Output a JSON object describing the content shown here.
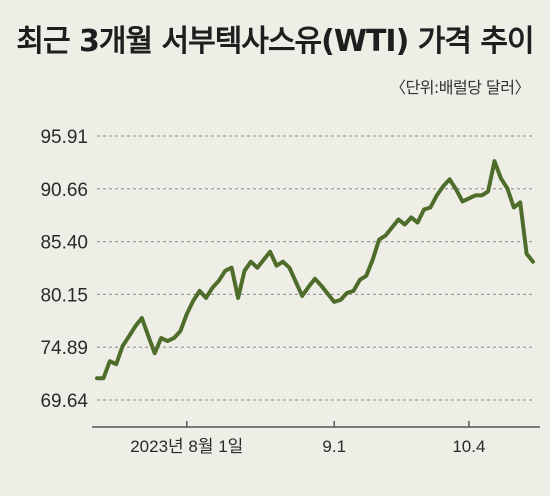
{
  "title": "최근 3개월 서부텍사스유(WTI) 가격 추이",
  "unit_label": "〈단위:배럴당 달러〉",
  "colors": {
    "line": "#4e6d2a",
    "grid": "#9a9a9a",
    "axis": "#555555",
    "background": "#eeeee6"
  },
  "chart_data": {
    "type": "line",
    "title": "최근 3개월 서부텍사스유(WTI) 가격 추이",
    "ylabel": "",
    "xlabel": "",
    "ylim": [
      69.64,
      95.91
    ],
    "yticks": [
      "95.91",
      "90.66",
      "85.40",
      "80.15",
      "74.89",
      "69.64"
    ],
    "ytick_values": [
      95.91,
      90.66,
      85.4,
      80.15,
      74.89,
      69.64
    ],
    "xtick_labels": [
      {
        "label": "2023년 8월 1일",
        "index": 14
      },
      {
        "label": "9.1",
        "index": 37
      },
      {
        "label": "10.4",
        "index": 58
      }
    ],
    "grid": true,
    "series": [
      {
        "values": [
          71.8,
          71.8,
          73.5,
          73.2,
          75.0,
          76.0,
          77.0,
          77.8,
          76.0,
          74.3,
          75.8,
          75.5,
          75.8,
          76.5,
          78.2,
          79.5,
          80.5,
          79.8,
          80.8,
          81.5,
          82.5,
          82.8,
          79.8,
          82.5,
          83.4,
          82.8,
          83.6,
          84.4,
          83.0,
          83.4,
          82.8,
          81.4,
          80.0,
          80.9,
          81.7,
          81.0,
          80.2,
          79.4,
          79.6,
          80.3,
          80.5,
          81.6,
          82.0,
          83.6,
          85.6,
          86.0,
          86.8,
          87.6,
          87.1,
          87.8,
          87.3,
          88.6,
          88.8,
          90.0,
          90.9,
          91.6,
          90.6,
          89.4,
          89.7,
          90.0,
          90.0,
          90.4,
          93.4,
          91.7,
          90.7,
          88.8,
          89.3,
          84.2,
          83.4
        ]
      }
    ]
  }
}
